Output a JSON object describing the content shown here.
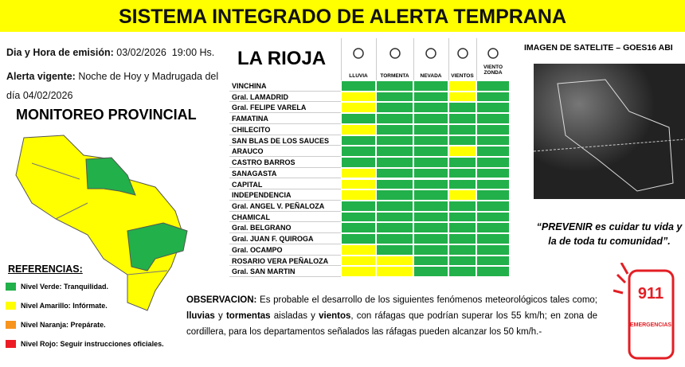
{
  "header": {
    "title": "SISTEMA INTEGRADO DE ALERTA TEMPRANA"
  },
  "info": {
    "emission_label": "Dia y Hora de emisión:",
    "emission_value": "03/02/2026  19:00 Hs.",
    "alert_label": "Alerta vigente:",
    "alert_value": "Noche de Hoy y Madrugada del día 04/02/2026"
  },
  "map": {
    "title": "MONITOREO PROVINCIAL"
  },
  "references": {
    "title": "REFERENCIAS:",
    "items": [
      {
        "name": "Nivel Verde:",
        "desc": "Tranquilidad.",
        "color": "#22b04a"
      },
      {
        "name": "Nivel Amarillo:",
        "desc": "Infórmate.",
        "color": "#ffff00"
      },
      {
        "name": "Nivel Naranja:",
        "desc": "Prepárate.",
        "color": "#f7941d"
      },
      {
        "name": "Nivel Rojo:",
        "desc": "Seguir instrucciones oficiales.",
        "color": "#ed1c24"
      }
    ]
  },
  "table": {
    "title": "LA RIOJA",
    "columns": [
      "LLUVIA",
      "TORMENTA",
      "NEVADA",
      "VIENTOS",
      "VIENTO ZONDA"
    ],
    "rows": [
      {
        "name": "VINCHINA",
        "cells": [
          "#22b04a",
          "#22b04a",
          "#22b04a",
          "#ffff00",
          "#22b04a"
        ]
      },
      {
        "name": "Gral. LAMADRID",
        "cells": [
          "#ffff00",
          "#22b04a",
          "#22b04a",
          "#ffff00",
          "#22b04a"
        ]
      },
      {
        "name": "Gral. FELIPE VARELA",
        "cells": [
          "#ffff00",
          "#22b04a",
          "#22b04a",
          "#22b04a",
          "#22b04a"
        ]
      },
      {
        "name": "FAMATINA",
        "cells": [
          "#22b04a",
          "#22b04a",
          "#22b04a",
          "#22b04a",
          "#22b04a"
        ]
      },
      {
        "name": "CHILECITO",
        "cells": [
          "#ffff00",
          "#22b04a",
          "#22b04a",
          "#22b04a",
          "#22b04a"
        ]
      },
      {
        "name": "SAN BLAS DE LOS SAUCES",
        "cells": [
          "#22b04a",
          "#22b04a",
          "#22b04a",
          "#22b04a",
          "#22b04a"
        ]
      },
      {
        "name": "ARAUCO",
        "cells": [
          "#22b04a",
          "#22b04a",
          "#22b04a",
          "#ffff00",
          "#22b04a"
        ]
      },
      {
        "name": "CASTRO BARROS",
        "cells": [
          "#22b04a",
          "#22b04a",
          "#22b04a",
          "#22b04a",
          "#22b04a"
        ]
      },
      {
        "name": "SANAGASTA",
        "cells": [
          "#ffff00",
          "#22b04a",
          "#22b04a",
          "#22b04a",
          "#22b04a"
        ]
      },
      {
        "name": "CAPITAL",
        "cells": [
          "#ffff00",
          "#22b04a",
          "#22b04a",
          "#22b04a",
          "#22b04a"
        ]
      },
      {
        "name": "INDEPENDENCIA",
        "cells": [
          "#ffff00",
          "#22b04a",
          "#22b04a",
          "#ffff00",
          "#22b04a"
        ]
      },
      {
        "name": "Gral. ANGEL V. PEÑALOZA",
        "cells": [
          "#22b04a",
          "#22b04a",
          "#22b04a",
          "#22b04a",
          "#22b04a"
        ]
      },
      {
        "name": "CHAMICAL",
        "cells": [
          "#22b04a",
          "#22b04a",
          "#22b04a",
          "#22b04a",
          "#22b04a"
        ]
      },
      {
        "name": "Gral. BELGRANO",
        "cells": [
          "#22b04a",
          "#22b04a",
          "#22b04a",
          "#22b04a",
          "#22b04a"
        ]
      },
      {
        "name": "Gral. JUAN F. QUIROGA",
        "cells": [
          "#22b04a",
          "#22b04a",
          "#22b04a",
          "#22b04a",
          "#22b04a"
        ]
      },
      {
        "name": "Gral. OCAMPO",
        "cells": [
          "#ffff00",
          "#22b04a",
          "#22b04a",
          "#22b04a",
          "#22b04a"
        ]
      },
      {
        "name": "ROSARIO VERA PEÑALOZA",
        "cells": [
          "#ffff00",
          "#ffff00",
          "#22b04a",
          "#22b04a",
          "#22b04a"
        ]
      },
      {
        "name": "Gral. SAN MARTIN",
        "cells": [
          "#ffff00",
          "#ffff00",
          "#22b04a",
          "#22b04a",
          "#22b04a"
        ]
      }
    ]
  },
  "satellite": {
    "title": "IMAGEN DE SATELITE – GOES16 ABI"
  },
  "quote": {
    "lines": [
      "“PREVENIR es cuidar tu vida y",
      "la de toda tu comunidad”."
    ]
  },
  "observation": {
    "label": "OBSERVACION:",
    "segments": [
      {
        "text": " Es probable el desarrollo de los siguientes fenómenos meteorológicos tales como; ",
        "bold": false
      },
      {
        "text": "lluvias",
        "bold": true
      },
      {
        "text": " y ",
        "bold": false
      },
      {
        "text": "tormentas",
        "bold": true
      },
      {
        "text": " aisladas y ",
        "bold": false
      },
      {
        "text": "vientos",
        "bold": true
      },
      {
        "text": ", con ráfagas que podrían superar los 55 km/h; en zona de cordillera, para los departamentos señalados las ráfagas pueden alcanzar los 50 km/h.-",
        "bold": false
      }
    ]
  },
  "emergency": {
    "number": "911",
    "label": "EMERGENCIAS"
  }
}
